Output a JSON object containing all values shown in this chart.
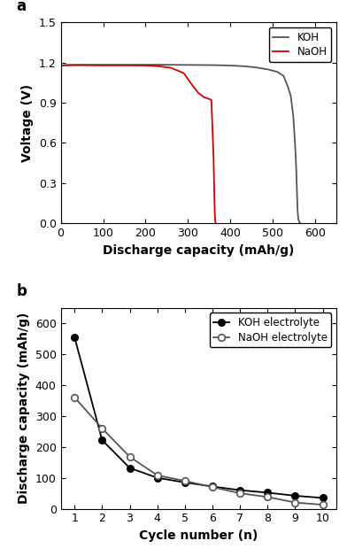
{
  "panel_a": {
    "koh_x": [
      0,
      5,
      10,
      20,
      40,
      80,
      120,
      160,
      200,
      240,
      280,
      320,
      360,
      400,
      430,
      460,
      490,
      510,
      525,
      535,
      542,
      548,
      552,
      555,
      557,
      558,
      559,
      560,
      561,
      562,
      563,
      564,
      565
    ],
    "koh_y": [
      1.175,
      1.179,
      1.181,
      1.182,
      1.183,
      1.183,
      1.183,
      1.183,
      1.183,
      1.183,
      1.182,
      1.181,
      1.18,
      1.177,
      1.172,
      1.163,
      1.147,
      1.13,
      1.1,
      1.02,
      0.95,
      0.8,
      0.6,
      0.4,
      0.2,
      0.1,
      0.06,
      0.03,
      0.02,
      0.01,
      0.005,
      0.002,
      0.0
    ],
    "naoh_x": [
      0,
      5,
      10,
      20,
      50,
      100,
      150,
      200,
      230,
      260,
      290,
      310,
      325,
      338,
      348,
      355,
      360,
      362,
      363,
      364,
      365
    ],
    "naoh_y": [
      1.173,
      1.177,
      1.178,
      1.179,
      1.179,
      1.178,
      1.178,
      1.177,
      1.172,
      1.16,
      1.12,
      1.03,
      0.97,
      0.94,
      0.93,
      0.92,
      0.5,
      0.2,
      0.08,
      0.02,
      0.0
    ],
    "koh_color": "#555555",
    "naoh_color": "#cc0000",
    "xlabel": "Discharge capacity (mAh/g)",
    "ylabel": "Voltage (V)",
    "xlim": [
      0,
      650
    ],
    "ylim": [
      0.0,
      1.5
    ],
    "xticks": [
      0,
      100,
      200,
      300,
      400,
      500,
      600
    ],
    "yticks": [
      0.0,
      0.3,
      0.6,
      0.9,
      1.2,
      1.5
    ],
    "legend_koh": "KOH",
    "legend_naoh": "NaOH",
    "panel_label": "a"
  },
  "panel_b": {
    "cycles": [
      1,
      2,
      3,
      4,
      5,
      6,
      7,
      8,
      9,
      10
    ],
    "koh_values": [
      555,
      222,
      132,
      100,
      85,
      72,
      60,
      52,
      42,
      35
    ],
    "naoh_values": [
      360,
      260,
      168,
      108,
      90,
      70,
      50,
      38,
      20,
      13
    ],
    "koh_color": "#000000",
    "naoh_color": "#555555",
    "xlabel": "Cycle number (n)",
    "ylabel": "Discharge capacity (mAh/g)",
    "xlim": [
      0.5,
      10.5
    ],
    "ylim": [
      0,
      650
    ],
    "xticks": [
      1,
      2,
      3,
      4,
      5,
      6,
      7,
      8,
      9,
      10
    ],
    "yticks": [
      0,
      100,
      200,
      300,
      400,
      500,
      600
    ],
    "legend_koh": "KOH electrolyte",
    "legend_naoh": "NaOH electrolyte",
    "panel_label": "b"
  },
  "background_color": "#ffffff",
  "label_fontsize": 10,
  "tick_fontsize": 9,
  "panel_label_fontsize": 12
}
